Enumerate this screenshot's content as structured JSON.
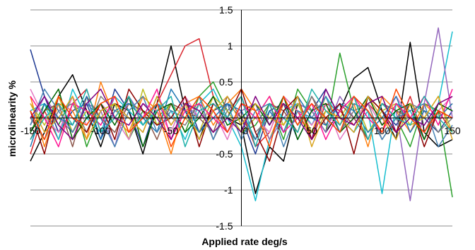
{
  "chart_data": {
    "type": "line",
    "title": "",
    "xlabel": "Applied rate deg/s",
    "ylabel": "microlinearity %",
    "xlim": [
      -150,
      150
    ],
    "ylim": [
      -1.5,
      1.5
    ],
    "x_ticks": [
      -150,
      -100,
      -50,
      0,
      50,
      100,
      150
    ],
    "y_ticks": [
      -1.5,
      -1,
      -0.5,
      0,
      0.5,
      1,
      1.5
    ],
    "x_tick_labels": [
      "-150",
      "-100",
      "-50",
      "0",
      "50",
      "100",
      "150"
    ],
    "y_tick_labels": [
      "-1.5",
      "-1",
      "-0.5",
      "0",
      "0.5",
      "1",
      "1.5"
    ],
    "grid": "horizontal",
    "legend": "none",
    "x": [
      -150,
      -140,
      -130,
      -120,
      -110,
      -100,
      -90,
      -80,
      -70,
      -60,
      -50,
      -40,
      -30,
      -20,
      -10,
      0,
      10,
      20,
      30,
      40,
      50,
      60,
      70,
      80,
      90,
      100,
      110,
      120,
      130,
      140,
      150
    ],
    "series": [
      {
        "color": "#1f3a93",
        "values": [
          0.95,
          0.3,
          -0.2,
          0.1,
          0.2,
          -0.3,
          0.4,
          0.1,
          -0.4,
          0.2,
          0.0,
          0.3,
          -0.2,
          0.1,
          0.2,
          0.0,
          -0.5,
          0.1,
          0.2,
          -0.3,
          0.1,
          0.4,
          0.0,
          -0.2,
          0.3,
          0.1,
          -0.1,
          0.2,
          0.0,
          -0.2,
          0.1
        ]
      },
      {
        "color": "#000000",
        "values": [
          -0.6,
          -0.2,
          0.3,
          0.6,
          0.1,
          -0.4,
          0.2,
          0.1,
          -0.5,
          0.2,
          1.0,
          0.1,
          -0.3,
          0.2,
          0.0,
          -0.1,
          -1.05,
          -0.4,
          -0.6,
          0.2,
          0.1,
          -0.2,
          0.1,
          0.55,
          0.7,
          0.1,
          -0.3,
          1.05,
          -0.2,
          -0.4,
          -0.3
        ]
      },
      {
        "color": "#d9262e",
        "values": [
          -0.5,
          0.1,
          -0.3,
          0.2,
          0.4,
          -0.2,
          0.0,
          0.3,
          -0.1,
          0.2,
          0.6,
          1.0,
          1.1,
          0.3,
          -0.2,
          0.1,
          -0.4,
          -0.2,
          0.3,
          0.1,
          -0.3,
          0.2,
          0.1,
          -0.1,
          0.2,
          0.0,
          -0.2,
          0.3,
          -0.3,
          0.1,
          -0.2
        ]
      },
      {
        "color": "#2aa02b",
        "values": [
          -0.2,
          0.2,
          -0.1,
          0.3,
          -0.4,
          0.1,
          0.2,
          -0.3,
          0.1,
          0.0,
          0.2,
          -0.2,
          0.3,
          0.5,
          0.1,
          -0.2,
          -0.1,
          0.2,
          -0.3,
          0.4,
          0.1,
          -0.2,
          0.9,
          0.1,
          -0.3,
          0.2,
          0.0,
          -0.4,
          0.2,
          0.1,
          -1.1
        ]
      },
      {
        "color": "#ff7f0e",
        "values": [
          0.3,
          -0.4,
          0.2,
          0.1,
          -0.3,
          0.5,
          0.0,
          -0.2,
          0.3,
          0.1,
          -0.5,
          0.2,
          0.3,
          -0.1,
          0.2,
          0.4,
          0.1,
          -0.3,
          0.2,
          0.0,
          -0.2,
          0.3,
          -0.1,
          0.2,
          -0.4,
          0.3,
          0.1,
          -0.2,
          0.2,
          0.0,
          0.2
        ]
      },
      {
        "color": "#17becf",
        "values": [
          0.1,
          0.2,
          -0.3,
          0.4,
          0.0,
          -0.2,
          0.3,
          0.1,
          -0.1,
          0.2,
          0.1,
          -0.3,
          0.2,
          0.4,
          0.0,
          -0.4,
          -1.15,
          -0.3,
          0.1,
          0.2,
          -0.1,
          0.3,
          0.0,
          -0.2,
          0.1,
          -1.05,
          0.2,
          0.1,
          -0.3,
          0.2,
          1.2
        ]
      },
      {
        "color": "#9467bd",
        "values": [
          -0.1,
          0.3,
          0.0,
          -0.2,
          0.2,
          0.1,
          -0.4,
          0.3,
          0.0,
          0.2,
          -0.1,
          0.2,
          0.0,
          0.3,
          -0.2,
          0.1,
          0.2,
          -0.3,
          0.0,
          0.2,
          0.1,
          -0.2,
          0.3,
          0.0,
          -0.3,
          0.2,
          0.1,
          -1.15,
          0.2,
          1.25,
          0.0
        ]
      },
      {
        "color": "#bcbd22",
        "values": [
          0.2,
          -0.1,
          0.3,
          -0.2,
          0.1,
          0.0,
          0.2,
          -0.3,
          0.4,
          -0.1,
          0.2,
          0.0,
          -0.2,
          0.3,
          0.1,
          -0.2,
          0.0,
          0.3,
          -0.1,
          0.2,
          -0.2,
          0.1,
          0.0,
          0.3,
          -0.2,
          0.1,
          0.2,
          -0.1,
          0.0,
          0.3,
          -0.2
        ]
      },
      {
        "color": "#8c564b",
        "values": [
          -0.3,
          0.1,
          0.2,
          -0.4,
          0.3,
          0.0,
          -0.2,
          0.2,
          0.1,
          -0.3,
          0.2,
          0.1,
          0.0,
          -0.2,
          0.3,
          0.0,
          -0.3,
          0.2,
          0.1,
          -0.2,
          0.3,
          -0.1,
          0.2,
          0.0,
          -0.3,
          0.2,
          0.1,
          0.0,
          -0.2,
          0.2,
          0.1
        ]
      },
      {
        "color": "#e377c2",
        "values": [
          0.4,
          0.0,
          -0.2,
          0.3,
          -0.1,
          0.2,
          0.0,
          -0.3,
          0.2,
          0.1,
          -0.2,
          0.3,
          0.0,
          0.1,
          -0.3,
          0.2,
          0.0,
          -0.2,
          0.3,
          0.1,
          -0.1,
          0.2,
          -0.3,
          0.0,
          0.2,
          -0.1,
          0.3,
          0.0,
          -0.2,
          0.1,
          0.3
        ]
      },
      {
        "color": "#7f7f7f",
        "values": [
          0.0,
          -0.3,
          0.1,
          0.2,
          -0.2,
          0.3,
          0.1,
          0.0,
          -0.2,
          0.3,
          0.0,
          -0.1,
          0.2,
          -0.3,
          0.1,
          0.3,
          -0.2,
          0.0,
          0.2,
          -0.1,
          0.3,
          0.0,
          -0.2,
          0.1,
          0.2,
          -0.3,
          0.0,
          0.2,
          0.1,
          -0.2,
          0.0
        ]
      },
      {
        "color": "#1f77b4",
        "values": [
          -0.4,
          0.2,
          0.0,
          -0.1,
          0.3,
          -0.3,
          0.1,
          0.2,
          0.0,
          -0.2,
          0.4,
          0.1,
          -0.2,
          0.0,
          0.2,
          0.1,
          -0.3,
          0.1,
          -0.2,
          0.3,
          0.0,
          -0.1,
          0.2,
          0.1,
          -0.2,
          0.0,
          0.3,
          -0.2,
          0.1,
          0.0,
          0.2
        ]
      },
      {
        "color": "#8b0000",
        "values": [
          0.1,
          -0.5,
          0.3,
          0.0,
          -0.2,
          0.2,
          -0.3,
          0.4,
          0.1,
          -0.1,
          0.0,
          0.3,
          -0.4,
          0.2,
          0.0,
          0.4,
          -0.2,
          -0.6,
          0.1,
          0.3,
          -0.3,
          0.0,
          0.2,
          -0.5,
          0.3,
          0.1,
          -0.2,
          0.2,
          -0.4,
          0.1,
          0.0
        ]
      },
      {
        "color": "#006400",
        "values": [
          -0.2,
          0.1,
          0.4,
          -0.3,
          0.0,
          0.2,
          -0.1,
          0.3,
          -0.4,
          0.1,
          0.2,
          -0.2,
          0.0,
          0.3,
          -0.1,
          0.0,
          0.2,
          -0.1,
          0.3,
          -0.3,
          0.1,
          0.2,
          -0.2,
          0.0,
          0.3,
          -0.1,
          0.1,
          0.2,
          -0.3,
          0.2,
          0.1
        ]
      },
      {
        "color": "#ff1493",
        "values": [
          0.3,
          0.0,
          -0.4,
          0.2,
          0.1,
          -0.1,
          0.3,
          -0.2,
          0.0,
          0.4,
          -0.3,
          0.1,
          0.2,
          0.0,
          -0.2,
          0.2,
          0.0,
          0.3,
          -0.2,
          0.0,
          0.2,
          -0.3,
          0.1,
          0.3,
          0.0,
          -0.2,
          0.2,
          0.0,
          0.3,
          -0.1,
          0.4
        ]
      },
      {
        "color": "#4682b4",
        "values": [
          -0.1,
          0.4,
          0.1,
          -0.2,
          0.2,
          0.0,
          -0.4,
          0.1,
          0.3,
          -0.2,
          0.1,
          0.0,
          0.3,
          -0.3,
          0.2,
          -0.3,
          0.1,
          0.2,
          -0.4,
          0.1,
          0.0,
          0.3,
          -0.2,
          0.2,
          0.1,
          -0.3,
          0.0,
          0.1,
          0.2,
          -0.4,
          -0.1
        ]
      },
      {
        "color": "#daa520",
        "values": [
          0.2,
          -0.2,
          0.0,
          0.3,
          -0.3,
          0.1,
          0.2,
          0.0,
          -0.2,
          0.3,
          -0.1,
          0.2,
          -0.3,
          0.1,
          0.3,
          -0.1,
          0.2,
          0.0,
          -0.1,
          0.3,
          -0.4,
          0.1,
          0.0,
          -0.2,
          0.3,
          0.0,
          -0.3,
          0.2,
          0.0,
          0.3,
          -0.3
        ]
      },
      {
        "color": "#20b2aa",
        "values": [
          -0.3,
          0.0,
          0.2,
          -0.1,
          0.4,
          -0.2,
          0.0,
          0.3,
          -0.1,
          0.1,
          0.3,
          -0.4,
          0.1,
          0.2,
          0.0,
          0.3,
          -0.4,
          0.2,
          0.0,
          -0.2,
          0.4,
          0.1,
          -0.1,
          0.3,
          -0.3,
          0.2,
          0.0,
          -0.1,
          0.3,
          0.0,
          -0.2
        ]
      },
      {
        "color": "#800080",
        "values": [
          0.0,
          0.3,
          -0.1,
          -0.3,
          0.2,
          0.4,
          0.0,
          -0.1,
          0.2,
          0.0,
          -0.3,
          0.2,
          0.1,
          -0.2,
          0.0,
          -0.2,
          0.3,
          -0.1,
          0.2,
          0.0,
          -0.3,
          0.4,
          0.0,
          -0.1,
          0.2,
          0.3,
          -0.2,
          0.0,
          -0.1,
          0.2,
          0.3
        ]
      },
      {
        "color": "#ff4500",
        "values": [
          0.1,
          -0.3,
          0.3,
          0.0,
          -0.1,
          0.2,
          0.3,
          -0.2,
          0.0,
          0.2,
          -0.4,
          0.0,
          0.3,
          0.1,
          -0.2,
          0.2,
          0.1,
          -0.4,
          0.3,
          -0.1,
          0.2,
          0.0,
          -0.2,
          0.3,
          0.1,
          -0.2,
          0.4,
          0.0,
          -0.2,
          0.1,
          0.0
        ]
      }
    ]
  }
}
